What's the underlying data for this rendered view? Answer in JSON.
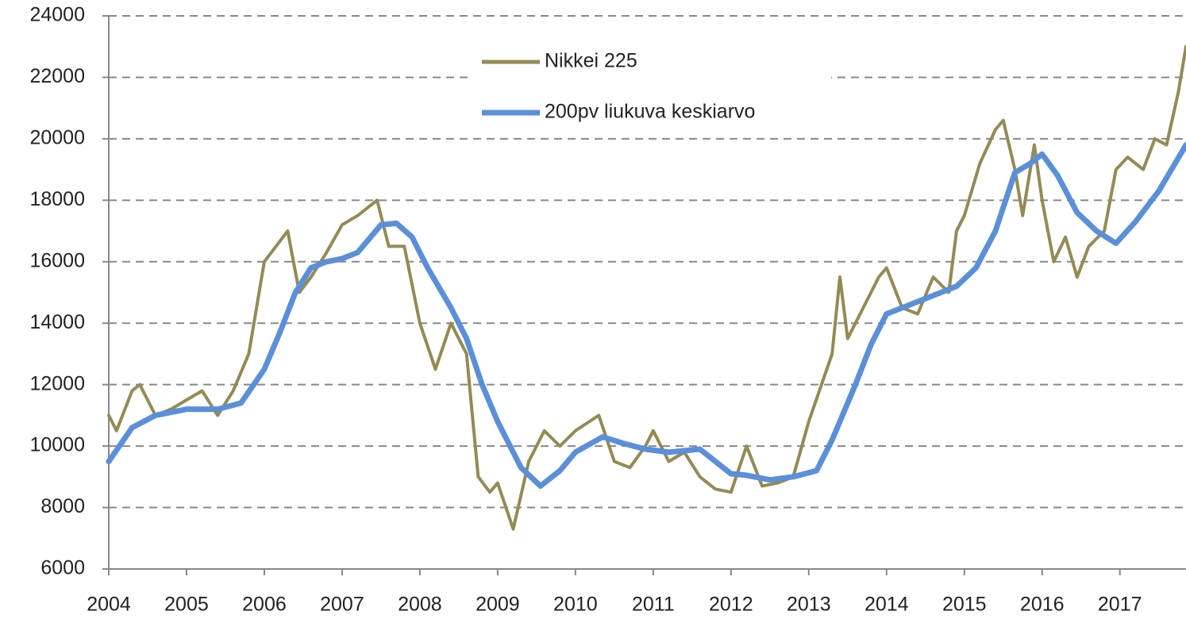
{
  "chart_data": {
    "type": "line",
    "xlim": [
      2004,
      2017.85
    ],
    "xticks": [
      2004,
      2005,
      2006,
      2007,
      2008,
      2009,
      2010,
      2011,
      2012,
      2013,
      2014,
      2015,
      2016,
      2017
    ],
    "ylim": [
      6000,
      24000
    ],
    "yticks": [
      6000,
      8000,
      10000,
      12000,
      14000,
      16000,
      18000,
      20000,
      22000,
      24000
    ],
    "grid": true,
    "legend": "top",
    "series": [
      {
        "name": "Nikkei 225",
        "color": "#948a54",
        "x": [
          2004.0,
          2004.1,
          2004.3,
          2004.4,
          2004.6,
          2004.8,
          2005.0,
          2005.2,
          2005.4,
          2005.6,
          2005.8,
          2006.0,
          2006.3,
          2006.45,
          2006.6,
          2006.8,
          2007.0,
          2007.2,
          2007.45,
          2007.6,
          2007.8,
          2008.0,
          2008.2,
          2008.4,
          2008.6,
          2008.75,
          2008.9,
          2009.0,
          2009.2,
          2009.4,
          2009.6,
          2009.8,
          2010.0,
          2010.3,
          2010.5,
          2010.7,
          2010.9,
          2011.0,
          2011.2,
          2011.4,
          2011.6,
          2011.8,
          2012.0,
          2012.2,
          2012.4,
          2012.6,
          2012.8,
          2013.0,
          2013.3,
          2013.4,
          2013.5,
          2013.7,
          2013.9,
          2014.0,
          2014.2,
          2014.4,
          2014.6,
          2014.8,
          2014.9,
          2015.0,
          2015.2,
          2015.4,
          2015.5,
          2015.65,
          2015.75,
          2015.9,
          2016.0,
          2016.15,
          2016.3,
          2016.45,
          2016.6,
          2016.8,
          2016.95,
          2017.1,
          2017.3,
          2017.45,
          2017.6,
          2017.75,
          2017.85
        ],
        "values": [
          11000,
          10500,
          11800,
          12000,
          11000,
          11200,
          11500,
          11800,
          11000,
          11800,
          13000,
          16000,
          17000,
          15000,
          15500,
          16300,
          17200,
          17500,
          18000,
          16500,
          16500,
          14000,
          12500,
          14000,
          13000,
          9000,
          8500,
          8800,
          7300,
          9500,
          10500,
          10000,
          10500,
          11000,
          9500,
          9300,
          10000,
          10500,
          9500,
          9800,
          9000,
          8600,
          8500,
          10000,
          8700,
          8800,
          9000,
          10800,
          13000,
          15500,
          13500,
          14500,
          15500,
          15800,
          14500,
          14300,
          15500,
          15000,
          17000,
          17500,
          19200,
          20300,
          20600,
          19000,
          17500,
          19800,
          18000,
          16000,
          16800,
          15500,
          16500,
          17000,
          19000,
          19400,
          19000,
          20000,
          19800,
          21500,
          23000
        ]
      },
      {
        "name": "200pv liukuva keskiarvo",
        "color": "#5b8fd8",
        "x": [
          2004.0,
          2004.3,
          2004.6,
          2005.0,
          2005.4,
          2005.7,
          2006.0,
          2006.2,
          2006.4,
          2006.6,
          2006.8,
          2007.0,
          2007.2,
          2007.5,
          2007.7,
          2007.9,
          2008.1,
          2008.4,
          2008.6,
          2008.8,
          2009.0,
          2009.3,
          2009.55,
          2009.8,
          2010.0,
          2010.35,
          2010.6,
          2010.9,
          2011.2,
          2011.6,
          2011.85,
          2012.0,
          2012.2,
          2012.5,
          2012.8,
          2013.1,
          2013.3,
          2013.6,
          2013.8,
          2014.0,
          2014.3,
          2014.6,
          2014.9,
          2015.15,
          2015.4,
          2015.65,
          2015.85,
          2016.0,
          2016.2,
          2016.45,
          2016.7,
          2016.95,
          2017.2,
          2017.5,
          2017.85
        ],
        "values": [
          9500,
          10600,
          11000,
          11200,
          11200,
          11400,
          12500,
          13700,
          15000,
          15800,
          16000,
          16100,
          16300,
          17200,
          17250,
          16800,
          15800,
          14500,
          13500,
          12000,
          10800,
          9300,
          8700,
          9200,
          9800,
          10300,
          10100,
          9900,
          9800,
          9900,
          9400,
          9100,
          9050,
          8900,
          9000,
          9200,
          10200,
          12000,
          13300,
          14300,
          14600,
          14900,
          15200,
          15800,
          17000,
          18900,
          19200,
          19500,
          18800,
          17600,
          17000,
          16600,
          17300,
          18300,
          19800
        ]
      }
    ]
  }
}
